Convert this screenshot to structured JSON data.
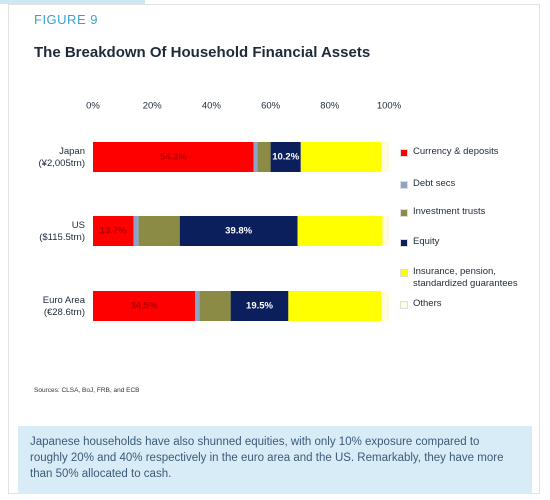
{
  "figure_label": "FIGURE 9",
  "chart_data": {
    "type": "bar",
    "orientation": "horizontal",
    "stacked": true,
    "title": "The Breakdown Of Household Financial Assets",
    "categories": [
      "Japan (¥2,005trn)",
      "US ($115.5trn)",
      "Euro Area (€28.6trn)"
    ],
    "series": [
      {
        "name": "Currency & deposits",
        "color": "#ff0000",
        "label_color": "#b00000",
        "values": [
          54.3,
          13.7,
          34.5
        ],
        "value_labels": [
          "54.3%",
          "13.7%",
          "34.5%"
        ]
      },
      {
        "name": "Debt secs",
        "color": "#8fa3c8",
        "values": [
          1.3,
          1.7,
          1.5
        ]
      },
      {
        "name": "Investment trusts",
        "color": "#8b8b45",
        "values": [
          4.4,
          13.9,
          10.5
        ]
      },
      {
        "name": "Equity",
        "color": "#0b1f5c",
        "label_color": "#ffffff",
        "values": [
          10.2,
          39.8,
          19.5
        ],
        "value_labels": [
          "10.2%",
          "39.8%",
          "19.5%"
        ]
      },
      {
        "name": "Insurance, pension, standardized guarantees",
        "color": "#ffff00",
        "values": [
          27.3,
          28.7,
          31.5
        ]
      },
      {
        "name": "Others",
        "color": "#fffbe0",
        "values": [
          2.5,
          2.2,
          2.5
        ]
      }
    ],
    "xlim": [
      0,
      100
    ],
    "xticks": [
      {
        "value": 0,
        "label": "0%"
      },
      {
        "value": 20,
        "label": "20%"
      },
      {
        "value": 40,
        "label": "40%"
      },
      {
        "value": 60,
        "label": "60%"
      },
      {
        "value": 80,
        "label": "80%"
      },
      {
        "value": 100,
        "label": "100%"
      }
    ],
    "legend": "right"
  },
  "source": "Sources: CLSA, BoJ, FRB, and ECB",
  "caption": "Japanese households have also shunned equities, with only 10% exposure compared to roughly 20% and 40% respectively in the euro area and the US. Remarkably, they have more than 50% allocated to cash."
}
